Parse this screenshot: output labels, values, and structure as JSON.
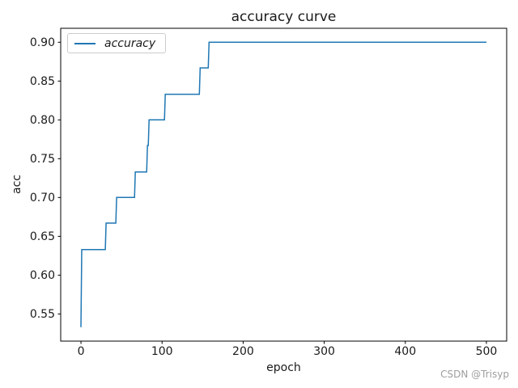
{
  "figure": {
    "title": "accuracy curve",
    "watermark": "CSDN @Trisyp"
  },
  "chart_data": {
    "type": "line",
    "title": "accuracy curve",
    "xlabel": "epoch",
    "ylabel": "acc",
    "grid": false,
    "legend_position": "upper left",
    "legend": [
      {
        "label": "accuracy",
        "color": "#1f77b4",
        "italic": true
      }
    ],
    "xlim": [
      -25,
      525
    ],
    "ylim": [
      0.515,
      0.918
    ],
    "xticks": [
      0,
      100,
      200,
      300,
      400,
      500
    ],
    "yticks": [
      0.55,
      0.6,
      0.65,
      0.7,
      0.75,
      0.8,
      0.85,
      0.9
    ],
    "ytick_labels": [
      "0.55",
      "0.60",
      "0.65",
      "0.70",
      "0.75",
      "0.80",
      "0.85",
      "0.90"
    ],
    "series": [
      {
        "name": "accuracy",
        "color": "#1f77b4",
        "line_width": 1.5,
        "step_points": [
          [
            0,
            0.533
          ],
          [
            1,
            0.633
          ],
          [
            30,
            0.633
          ],
          [
            31,
            0.667
          ],
          [
            43,
            0.667
          ],
          [
            44,
            0.7
          ],
          [
            66,
            0.7
          ],
          [
            67,
            0.733
          ],
          [
            81,
            0.733
          ],
          [
            82,
            0.767
          ],
          [
            83,
            0.767
          ],
          [
            84,
            0.8
          ],
          [
            103,
            0.8
          ],
          [
            104,
            0.833
          ],
          [
            146,
            0.833
          ],
          [
            147,
            0.867
          ],
          [
            157,
            0.867
          ],
          [
            158,
            0.9
          ],
          [
            500,
            0.9
          ]
        ]
      }
    ],
    "colors": {
      "line": "#1f77b4",
      "axis": "#000000",
      "text": "#1a1a1a",
      "legend_border": "#cccccc",
      "watermark": "#9e9e9e"
    }
  }
}
